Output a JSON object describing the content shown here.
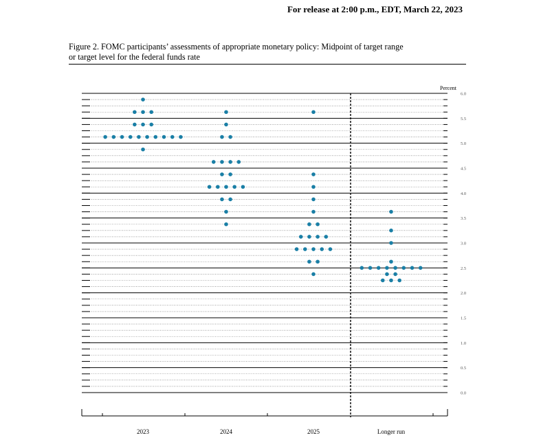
{
  "header": {
    "release": "For release at 2:00 p.m., EDT, March 22, 2023"
  },
  "figure": {
    "caption_line1": "Figure 2.  FOMC participants’ assessments of appropriate monetary policy:  Midpoint of target range",
    "caption_line2": "or target level for the federal funds rate"
  },
  "colors": {
    "dot": "#1a7fa6",
    "grid": "#000000"
  },
  "chart_data": {
    "type": "scatter",
    "title": "",
    "ylabel": "Percent",
    "xlabel": "",
    "ylim": [
      0.0,
      6.0
    ],
    "y_ticks": [
      "0.0",
      "0.5",
      "1.0",
      "1.5",
      "2.0",
      "2.5",
      "3.0",
      "3.5",
      "4.0",
      "4.5",
      "5.0",
      "5.5",
      "6.0"
    ],
    "categories": [
      "2023",
      "2024",
      "2025",
      "Longer run"
    ],
    "grid": "dotted lines at every 0.125, solid lines at every 0.5",
    "dot_counts": [
      {
        "category": "2023",
        "points": [
          {
            "rate": 5.875,
            "count": 1
          },
          {
            "rate": 5.625,
            "count": 3
          },
          {
            "rate": 5.375,
            "count": 3
          },
          {
            "rate": 5.125,
            "count": 10
          },
          {
            "rate": 4.875,
            "count": 1
          }
        ]
      },
      {
        "category": "2024",
        "points": [
          {
            "rate": 5.625,
            "count": 1
          },
          {
            "rate": 5.375,
            "count": 1
          },
          {
            "rate": 5.125,
            "count": 2
          },
          {
            "rate": 4.625,
            "count": 4
          },
          {
            "rate": 4.375,
            "count": 2
          },
          {
            "rate": 4.125,
            "count": 5
          },
          {
            "rate": 3.875,
            "count": 2
          },
          {
            "rate": 3.625,
            "count": 1
          },
          {
            "rate": 3.375,
            "count": 1
          }
        ]
      },
      {
        "category": "2025",
        "points": [
          {
            "rate": 5.625,
            "count": 1
          },
          {
            "rate": 4.375,
            "count": 1
          },
          {
            "rate": 4.125,
            "count": 1
          },
          {
            "rate": 3.875,
            "count": 1
          },
          {
            "rate": 3.625,
            "count": 1
          },
          {
            "rate": 3.375,
            "count": 2
          },
          {
            "rate": 3.125,
            "count": 4
          },
          {
            "rate": 2.875,
            "count": 5
          },
          {
            "rate": 2.625,
            "count": 2
          },
          {
            "rate": 2.375,
            "count": 1
          }
        ]
      },
      {
        "category": "Longer run",
        "points": [
          {
            "rate": 3.625,
            "count": 1
          },
          {
            "rate": 3.25,
            "count": 1
          },
          {
            "rate": 3.0,
            "count": 1
          },
          {
            "rate": 2.625,
            "count": 1
          },
          {
            "rate": 2.5,
            "count": 8
          },
          {
            "rate": 2.375,
            "count": 2
          },
          {
            "rate": 2.25,
            "count": 3
          }
        ]
      }
    ]
  }
}
